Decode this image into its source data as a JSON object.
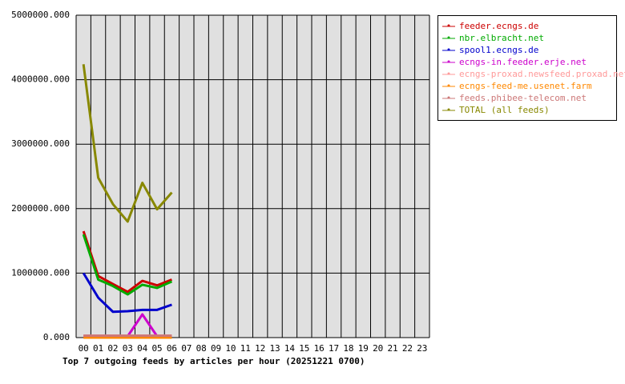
{
  "chart_data": {
    "type": "line",
    "title": "Top 7 outgoing feeds by articles per hour (20251221 0700)",
    "categories": [
      "00",
      "01",
      "02",
      "03",
      "04",
      "05",
      "06",
      "07",
      "08",
      "09",
      "10",
      "11",
      "12",
      "13",
      "14",
      "15",
      "16",
      "17",
      "18",
      "19",
      "20",
      "21",
      "22",
      "23"
    ],
    "series": [
      {
        "name": "feeder.ecngs.de",
        "color": "#cc0000",
        "values": [
          1650000,
          955000,
          830000,
          710000,
          880000,
          810000,
          900000,
          null,
          null,
          null,
          null,
          null,
          null,
          null,
          null,
          null,
          null,
          null,
          null,
          null,
          null,
          null,
          null,
          null
        ]
      },
      {
        "name": "nbr.elbracht.net",
        "color": "#00aa00",
        "values": [
          1600000,
          900000,
          800000,
          670000,
          820000,
          770000,
          870000,
          null,
          null,
          null,
          null,
          null,
          null,
          null,
          null,
          null,
          null,
          null,
          null,
          null,
          null,
          null,
          null,
          null
        ]
      },
      {
        "name": "spool1.ecngs.de",
        "color": "#0000cc",
        "values": [
          1000000,
          620000,
          400000,
          410000,
          430000,
          430000,
          510000,
          null,
          null,
          null,
          null,
          null,
          null,
          null,
          null,
          null,
          null,
          null,
          null,
          null,
          null,
          null,
          null,
          null
        ]
      },
      {
        "name": "ecngs-in.feeder.erje.net",
        "color": "#cc00cc",
        "values": [
          20000,
          20000,
          20000,
          20000,
          360000,
          20000,
          20000,
          null,
          null,
          null,
          null,
          null,
          null,
          null,
          null,
          null,
          null,
          null,
          null,
          null,
          null,
          null,
          null,
          null
        ]
      },
      {
        "name": "ecngs-proxad.newsfeed.proxad.net",
        "color": "#ff9999",
        "values": [
          30000,
          30000,
          30000,
          30000,
          30000,
          30000,
          30000,
          null,
          null,
          null,
          null,
          null,
          null,
          null,
          null,
          null,
          null,
          null,
          null,
          null,
          null,
          null,
          null,
          null
        ]
      },
      {
        "name": "ecngs-feed-me.usenet.farm",
        "color": "#ff8800",
        "values": [
          0,
          0,
          0,
          0,
          0,
          0,
          0,
          null,
          null,
          null,
          null,
          null,
          null,
          null,
          null,
          null,
          null,
          null,
          null,
          null,
          null,
          null,
          null,
          null
        ]
      },
      {
        "name": "feeds.phibee-telecom.net",
        "color": "#cc7777",
        "values": [
          30000,
          30000,
          30000,
          30000,
          30000,
          30000,
          30000,
          null,
          null,
          null,
          null,
          null,
          null,
          null,
          null,
          null,
          null,
          null,
          null,
          null,
          null,
          null,
          null,
          null
        ]
      },
      {
        "name": "TOTAL (all feeds)",
        "color": "#888800",
        "values": [
          4240000,
          2480000,
          2070000,
          1800000,
          2400000,
          1990000,
          2250000,
          null,
          null,
          null,
          null,
          null,
          null,
          null,
          null,
          null,
          null,
          null,
          null,
          null,
          null,
          null,
          null,
          null
        ]
      }
    ],
    "ylim": [
      0,
      5000000
    ],
    "yticks": [
      {
        "value": 0,
        "label": "0.000"
      },
      {
        "value": 1000000,
        "label": "1000000.000"
      },
      {
        "value": 2000000,
        "label": "2000000.000"
      },
      {
        "value": 3000000,
        "label": "3000000.000"
      },
      {
        "value": 4000000,
        "label": "4000000.000"
      },
      {
        "value": 5000000,
        "label": "5000000.000"
      }
    ],
    "grid": true
  }
}
